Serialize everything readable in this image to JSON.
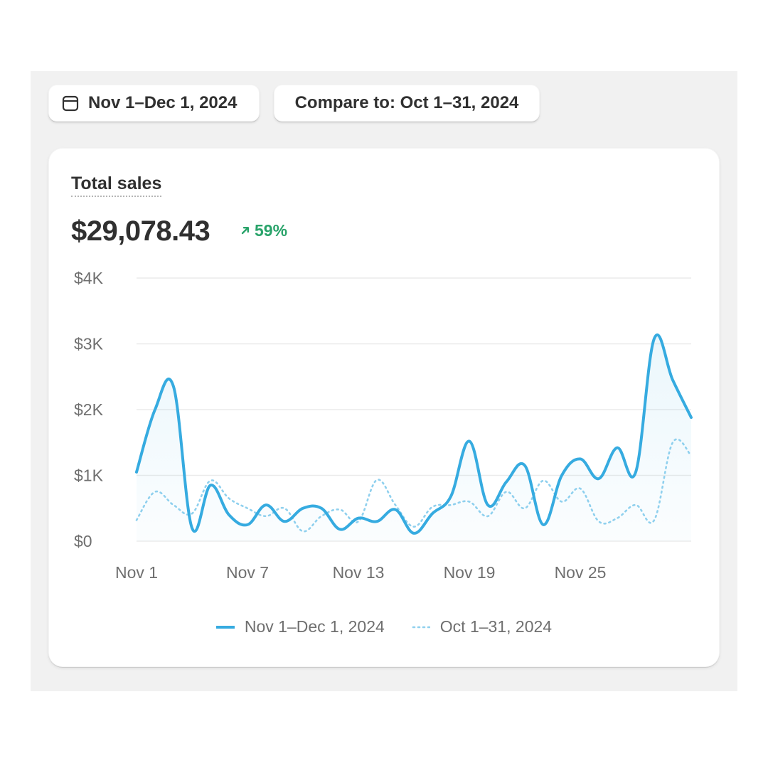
{
  "controls": {
    "date_range_label": "Nov 1–Dec 1, 2024",
    "compare_label": "Compare to: Oct 1–31, 2024"
  },
  "card": {
    "title": "Total sales",
    "value": "$29,078.43",
    "change": "59%",
    "change_direction": "up"
  },
  "colors": {
    "primary_line": "#36abe0",
    "compare_line": "#8fd0ee",
    "positive": "#29a36a",
    "grid": "#ebebeb"
  },
  "chart_data": {
    "type": "line",
    "y_ticks": [
      "$0",
      "$1K",
      "$2K",
      "$3K",
      "$4K"
    ],
    "ylim": [
      0,
      4000
    ],
    "x_ticks": [
      "Nov 1",
      "Nov 7",
      "Nov 13",
      "Nov 19",
      "Nov 25"
    ],
    "x_tick_indices": [
      0,
      6,
      12,
      18,
      24
    ],
    "grid": true,
    "legend_position": "bottom-center",
    "series": [
      {
        "name": "Nov 1–Dec 1, 2024",
        "style": "solid",
        "values": [
          1050,
          2000,
          2350,
          200,
          850,
          400,
          250,
          550,
          300,
          500,
          500,
          180,
          350,
          300,
          480,
          120,
          420,
          680,
          1520,
          550,
          900,
          1150,
          250,
          1000,
          1250,
          950,
          1420,
          1050,
          3080,
          2450,
          1880
        ]
      },
      {
        "name": "Oct 1–31, 2024",
        "style": "dotted",
        "values": [
          320,
          750,
          550,
          420,
          920,
          650,
          500,
          380,
          500,
          150,
          380,
          480,
          300,
          930,
          550,
          220,
          520,
          550,
          600,
          380,
          750,
          500,
          920,
          600,
          800,
          300,
          350,
          550,
          320,
          1500,
          1300
        ]
      }
    ]
  }
}
